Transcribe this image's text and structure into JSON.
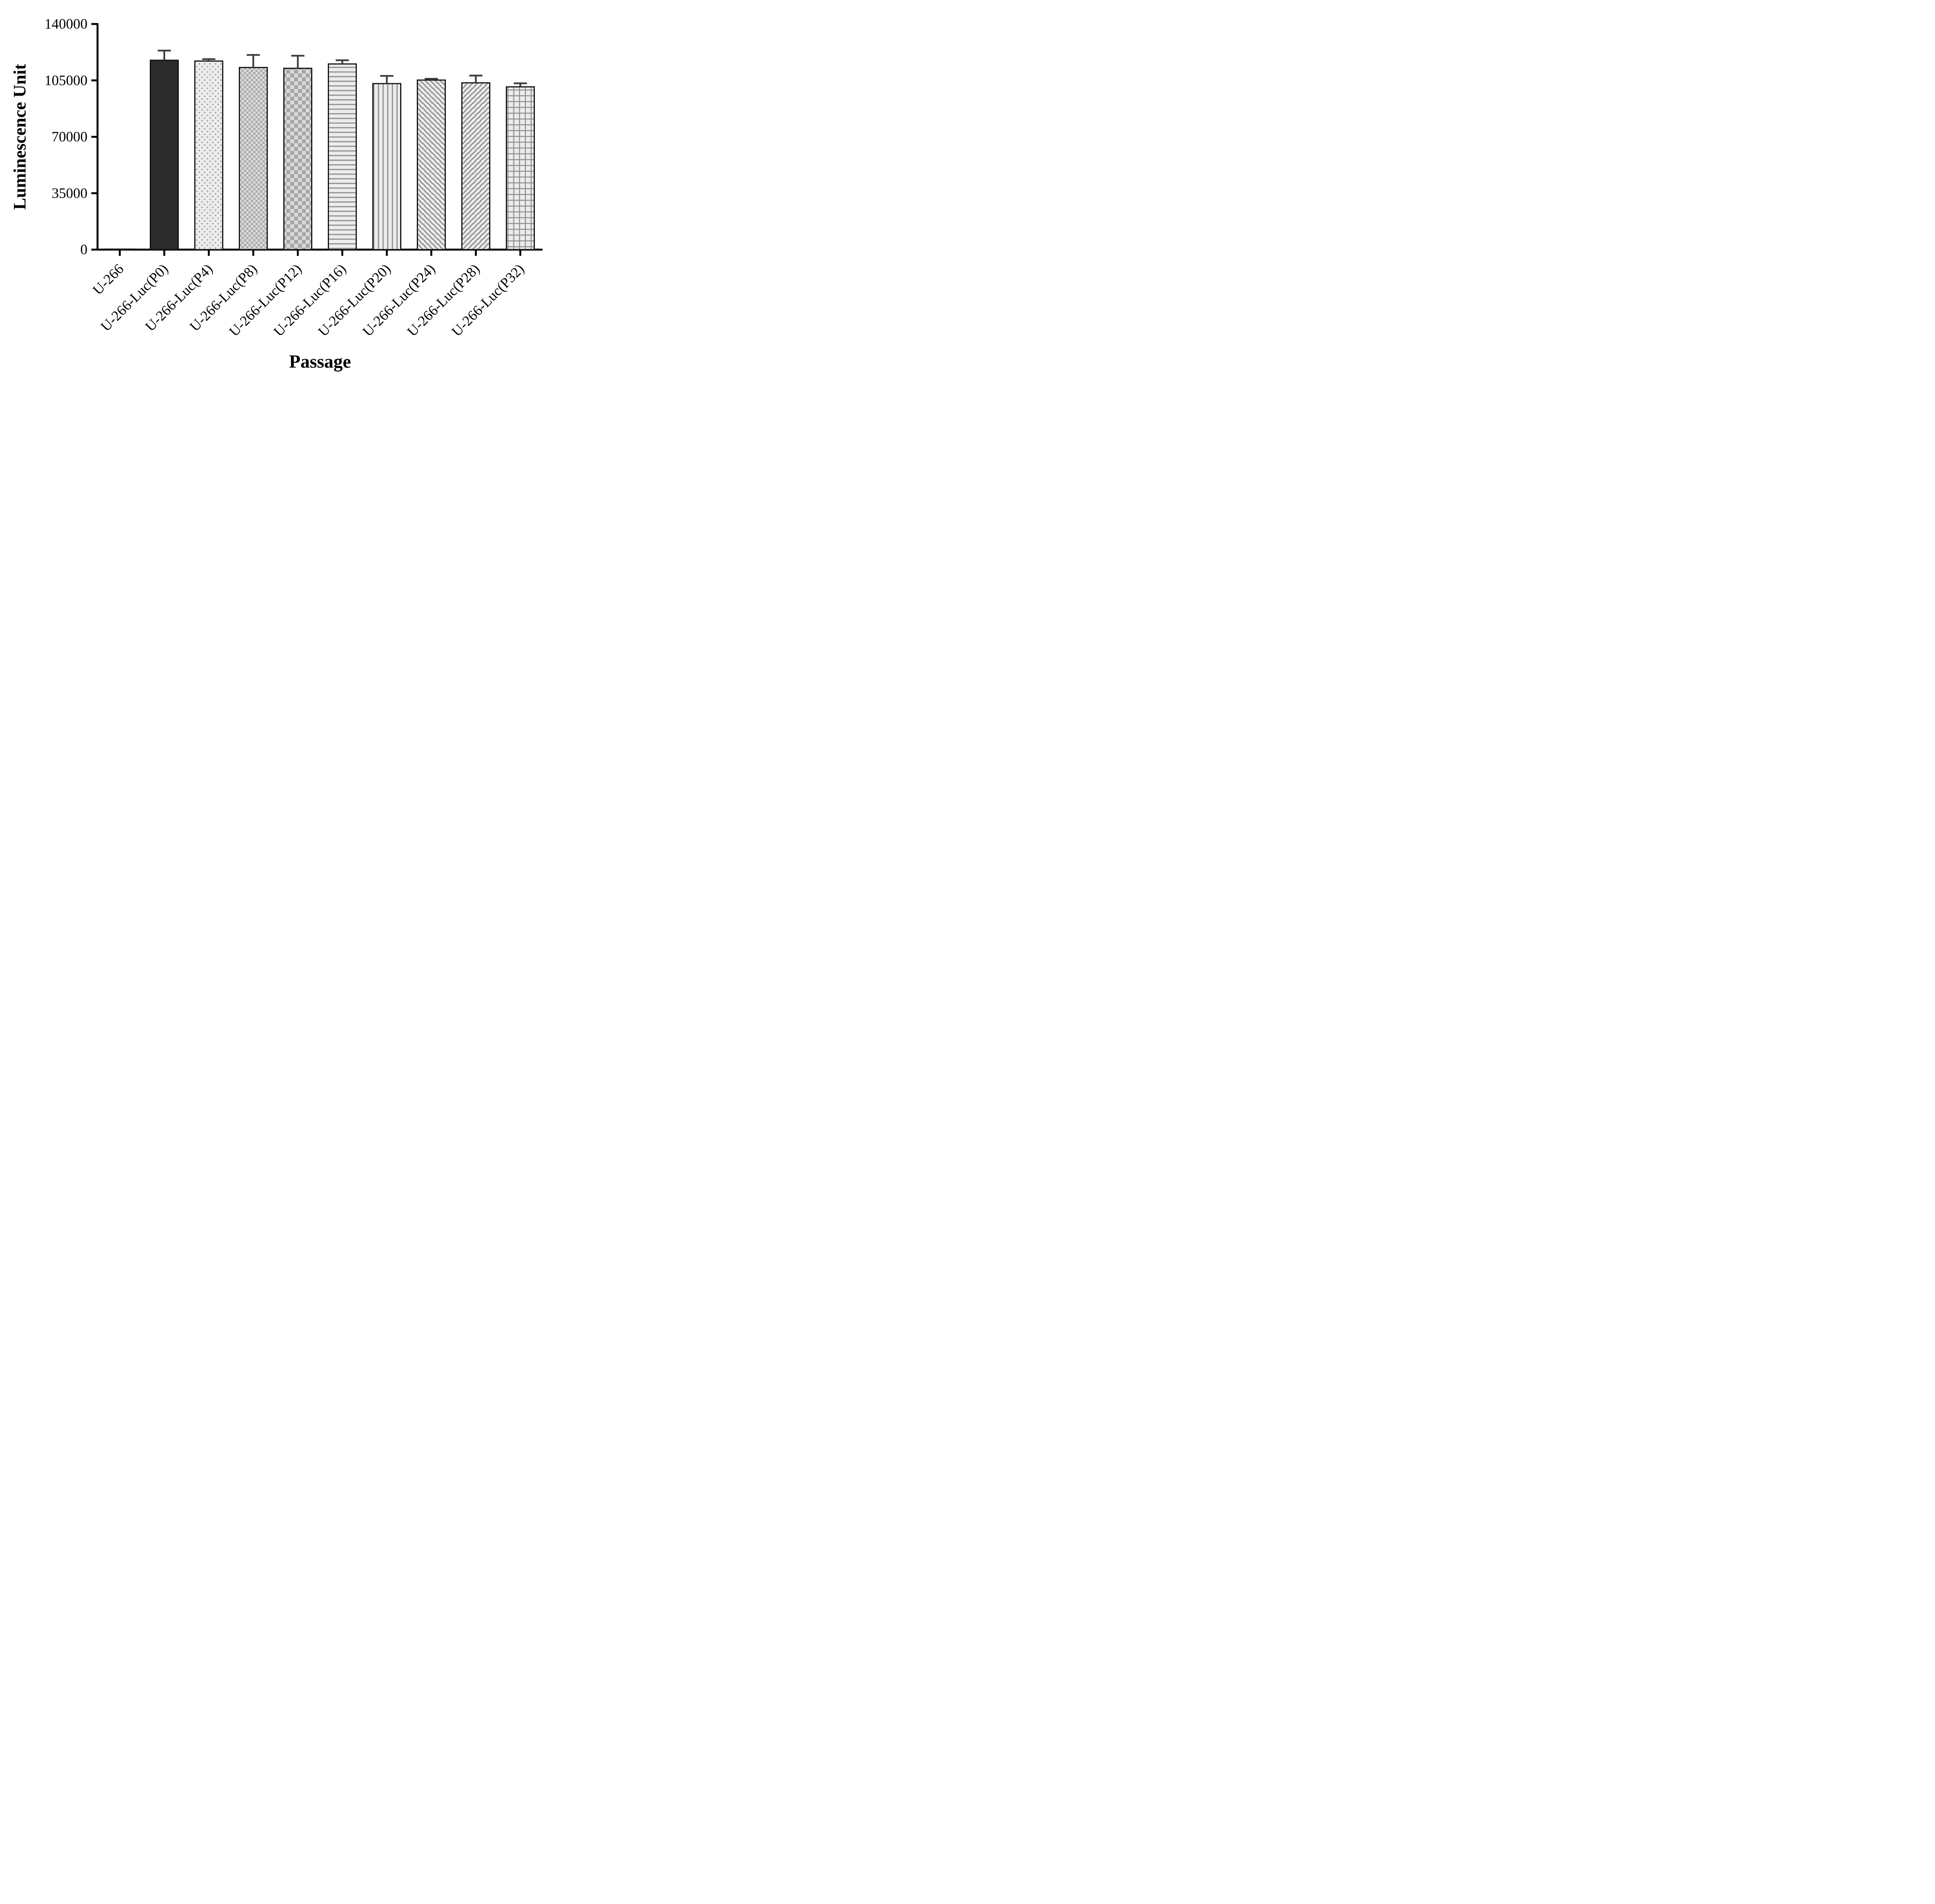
{
  "chart_data": {
    "type": "bar",
    "title": "",
    "xlabel": "Passage",
    "ylabel": "Luminescence Unit",
    "ylim": [
      0,
      140000
    ],
    "yticks": [
      0,
      35000,
      70000,
      105000,
      140000
    ],
    "ytick_labels": [
      "0",
      "35000",
      "70000",
      "105000",
      "140000"
    ],
    "grid": false,
    "legend": "none",
    "categories": [
      "U-266",
      "U-266-Luc(P0)",
      "U-266-Luc(P4)",
      "U-266-Luc(P8)",
      "U-266-Luc(P12)",
      "U-266-Luc(P16)",
      "U-266-Luc(P20)",
      "U-266-Luc(P24)",
      "U-266-Luc(P28)",
      "U-266-Luc(P32)"
    ],
    "values": [
      300,
      117500,
      117000,
      113000,
      112500,
      115200,
      103000,
      105200,
      103500,
      101000
    ],
    "errors_upper": [
      0,
      6000,
      1200,
      7800,
      7800,
      2300,
      4800,
      800,
      4500,
      2200
    ],
    "bar_patterns": [
      "none",
      "solid",
      "dots",
      "checker-small",
      "checker-large",
      "horizontal-lines",
      "vertical-lines",
      "diagonal-left",
      "diagonal-right",
      "grid"
    ],
    "colors": {
      "axis": "#000000",
      "bar_outline": "#111111",
      "solid_bar": "#2b2b2b",
      "pattern_background": "#ececec",
      "pattern_foreground": "#8f8f8f",
      "error_bar": "#3d3d3d"
    }
  }
}
